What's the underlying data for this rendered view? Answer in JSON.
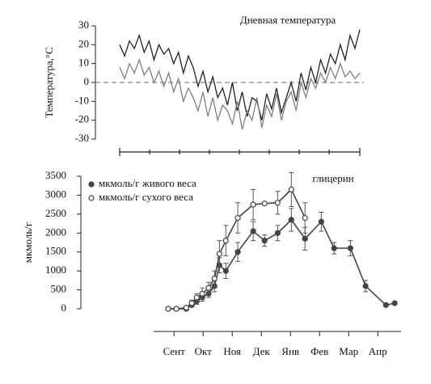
{
  "chart_data": [
    {
      "type": "line",
      "title": "Дневная температура",
      "y_label": "Температура,°С",
      "categories": [
        null,
        null,
        null,
        null,
        null,
        null,
        null,
        null,
        null,
        null,
        null,
        null,
        null,
        null,
        null,
        null,
        null,
        null,
        null,
        null,
        null,
        null,
        null,
        null,
        null,
        null,
        null,
        null,
        null,
        null,
        null,
        null,
        null,
        null,
        null,
        null,
        null,
        null,
        null,
        null,
        null,
        null,
        null,
        null,
        null,
        null,
        null,
        null,
        null,
        null
      ],
      "series": [
        {
          "color": "#222222",
          "values": [
            20,
            14,
            22,
            18,
            25,
            16,
            22,
            12,
            20,
            15,
            18,
            10,
            16,
            5,
            14,
            8,
            -2,
            6,
            -5,
            3,
            -8,
            -3,
            -12,
            0,
            -15,
            -5,
            -18,
            -8,
            -10,
            -20,
            -6,
            -14,
            -3,
            -16,
            -8,
            0,
            -10,
            5,
            -4,
            8,
            0,
            12,
            5,
            15,
            10,
            20,
            12,
            25,
            18,
            28
          ]
        },
        {
          "color": "#808080",
          "values": [
            8,
            2,
            10,
            5,
            12,
            4,
            8,
            0,
            6,
            -2,
            5,
            -5,
            2,
            -10,
            -3,
            -8,
            -15,
            -5,
            -18,
            -8,
            -20,
            -12,
            -15,
            -22,
            -10,
            -25,
            -15,
            -20,
            -8,
            -24,
            -12,
            -18,
            -6,
            -20,
            -10,
            -5,
            -15,
            0,
            -8,
            2,
            -3,
            5,
            0,
            8,
            2,
            10,
            3,
            6,
            2,
            5
          ]
        }
      ],
      "ylim": [
        -30,
        30
      ],
      "yticks": [
        -30,
        -20,
        -10,
        0,
        10,
        20,
        30
      ],
      "hline": 0
    },
    {
      "type": "line",
      "annotation": "глицерин",
      "y_label": "мкмоль/г",
      "legend": "top-left",
      "x": [
        0.3,
        0.58,
        0.92,
        1.11,
        1.28,
        1.47,
        1.69,
        1.89,
        2.06,
        2.28,
        2.69,
        3.22,
        3.61,
        4.06,
        4.53,
        5.0,
        5.56,
        6.0,
        6.56,
        7.08,
        7.78,
        8.08
      ],
      "series": [
        {
          "name": "мкмоль/г живого веса",
          "color": "#444444",
          "marker": "filled",
          "values": [
            0,
            0,
            0,
            100,
            200,
            300,
            400,
            600,
            1150,
            1000,
            1500,
            2050,
            1800,
            2000,
            2350,
            1850,
            2300,
            1600,
            1600,
            600,
            100,
            150
          ],
          "errors": [
            0,
            0,
            0,
            50,
            80,
            100,
            100,
            150,
            200,
            200,
            250,
            250,
            150,
            200,
            300,
            300,
            250,
            150,
            200,
            150,
            0,
            0
          ]
        },
        {
          "name": "мкмоль/г сухого веса",
          "color": "#444444",
          "marker": "open",
          "values": [
            0,
            0,
            30,
            150,
            300,
            400,
            550,
            800,
            1450,
            1800,
            2400,
            2750,
            2780,
            2800,
            3150,
            2400,
            null,
            null,
            null,
            null,
            null,
            null
          ],
          "errors": [
            0,
            0,
            0,
            80,
            100,
            150,
            150,
            200,
            350,
            400,
            400,
            400,
            0,
            300,
            450,
            400,
            null,
            null,
            null,
            null,
            null,
            null
          ]
        }
      ],
      "xlim": [
        -0.2,
        8.3
      ],
      "xticks": [
        {
          "value": 0.5,
          "label": "Сент"
        },
        {
          "value": 1.5,
          "label": "Окт"
        },
        {
          "value": 2.5,
          "label": "Ноя"
        },
        {
          "value": 3.5,
          "label": "Дек"
        },
        {
          "value": 4.5,
          "label": "Янв"
        },
        {
          "value": 5.5,
          "label": "Фев"
        },
        {
          "value": 6.5,
          "label": "Мар"
        },
        {
          "value": 7.5,
          "label": "Апр"
        }
      ],
      "ylim": [
        0,
        3500
      ],
      "yticks": [
        0,
        500,
        1000,
        1500,
        2000,
        2500,
        3000,
        3500
      ]
    }
  ]
}
